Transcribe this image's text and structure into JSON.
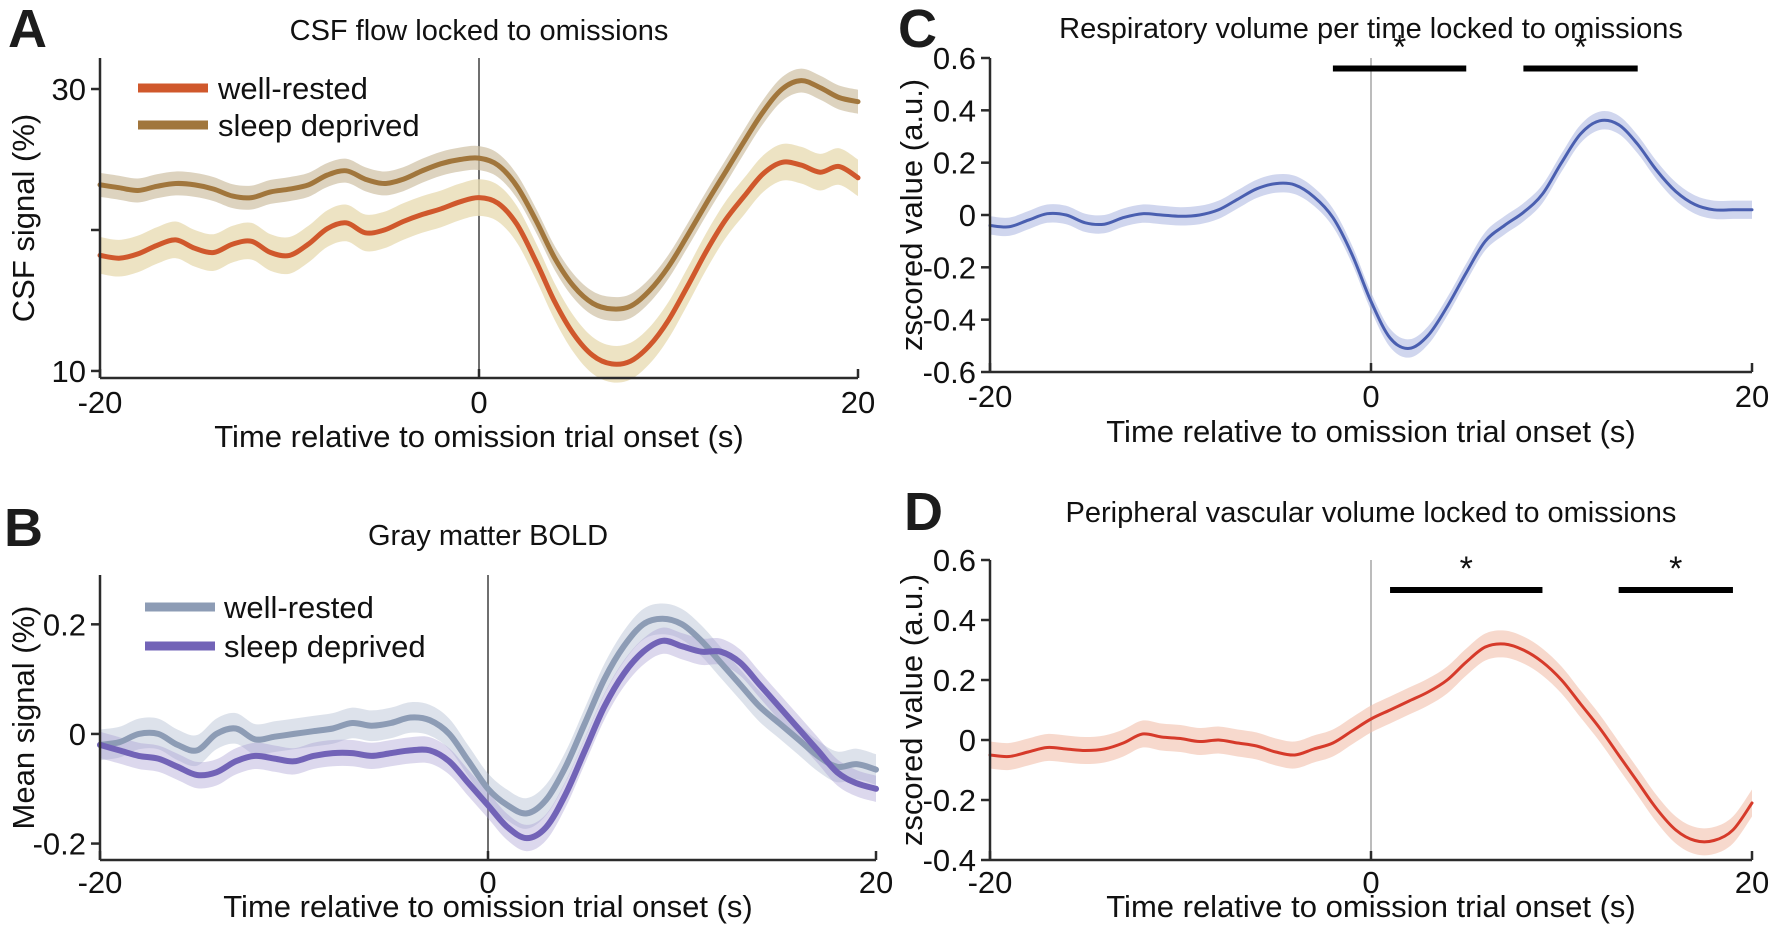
{
  "figure": {
    "background": "#ffffff",
    "text_color": "#111111",
    "axis_color": "#2b2b2b",
    "sig_bar_color": "#000000"
  },
  "chart_data": [
    {
      "panel_label": "A",
      "type": "line",
      "title": "CSF flow locked to omissions",
      "xlabel": "Time relative to omission trial onset (s)",
      "ylabel": "CSF signal (%)",
      "xlim": [
        -20,
        20
      ],
      "ylim": [
        9.5,
        32.2
      ],
      "xticks": [
        {
          "v": -20,
          "label": "-20"
        },
        {
          "v": 0,
          "label": "0"
        },
        {
          "v": 20,
          "label": "20"
        }
      ],
      "yticks": [
        {
          "v": 10,
          "label": "10"
        },
        {
          "v": 20,
          "label": ""
        },
        {
          "v": 30,
          "label": "30"
        }
      ],
      "zero_line": {
        "show": true,
        "color": "#6f6f6f",
        "width": 2
      },
      "x": [
        -20,
        -19,
        -18,
        -17,
        -16,
        -15,
        -14,
        -13,
        -12,
        -11,
        -10,
        -9,
        -8,
        -7,
        -6,
        -5,
        -4,
        -3,
        -2,
        -1,
        0,
        1,
        2,
        3,
        4,
        5,
        6,
        7,
        8,
        9,
        10,
        11,
        12,
        13,
        14,
        15,
        16,
        17,
        18,
        19,
        20
      ],
      "series": [
        {
          "name": "well-rested",
          "color": "#d0582c",
          "line_width": 5,
          "band_half_width": 1.3,
          "band_color": "#e9dcb4",
          "band_opacity": 0.8,
          "values": [
            18.2,
            18.0,
            18.3,
            18.9,
            19.3,
            18.7,
            18.4,
            19.0,
            19.2,
            18.4,
            18.2,
            19.0,
            20.1,
            20.5,
            19.8,
            20.0,
            20.6,
            21.1,
            21.5,
            22.0,
            22.3,
            21.9,
            20.4,
            17.8,
            14.9,
            12.6,
            11.1,
            10.5,
            10.7,
            11.8,
            13.6,
            16.0,
            18.5,
            20.7,
            22.4,
            24.0,
            24.8,
            24.6,
            24.1,
            24.5,
            23.7
          ]
        },
        {
          "name": "sleep deprived",
          "color": "#a1763c",
          "line_width": 5,
          "band_half_width": 0.85,
          "band_color": "#cfc0a4",
          "band_opacity": 0.7,
          "values": [
            23.2,
            23.0,
            22.8,
            23.1,
            23.3,
            23.2,
            22.9,
            22.4,
            22.3,
            22.7,
            22.9,
            23.2,
            23.9,
            24.2,
            23.6,
            23.3,
            23.6,
            24.2,
            24.7,
            25.0,
            25.1,
            24.6,
            23.1,
            20.7,
            18.0,
            16.0,
            14.8,
            14.4,
            14.6,
            15.7,
            17.4,
            19.6,
            21.9,
            24.1,
            26.3,
            28.4,
            30.0,
            30.6,
            30.1,
            29.4,
            29.1
          ]
        }
      ],
      "legend": {
        "entries": [
          "well-rested",
          "sleep deprived"
        ]
      },
      "sig_bars": []
    },
    {
      "panel_label": "B",
      "type": "line",
      "title": "Gray matter BOLD",
      "xlabel": "Time relative to omission trial onset (s)",
      "ylabel": "Mean signal (%)",
      "xlim": [
        -20,
        20
      ],
      "ylim": [
        -0.23,
        0.29
      ],
      "xticks": [
        {
          "v": -20,
          "label": "-20"
        },
        {
          "v": 0,
          "label": "0"
        },
        {
          "v": 20,
          "label": "20"
        }
      ],
      "yticks": [
        {
          "v": -0.2,
          "label": "-0.2"
        },
        {
          "v": 0,
          "label": "0"
        },
        {
          "v": 0.2,
          "label": "0.2"
        }
      ],
      "zero_line": {
        "show": true,
        "color": "#6f6f6f",
        "width": 2
      },
      "x": [
        -20,
        -19,
        -18,
        -17,
        -16,
        -15,
        -14,
        -13,
        -12,
        -11,
        -10,
        -9,
        -8,
        -7,
        -6,
        -5,
        -4,
        -3,
        -2,
        -1,
        0,
        1,
        2,
        3,
        4,
        5,
        6,
        7,
        8,
        9,
        10,
        11,
        12,
        13,
        14,
        15,
        16,
        17,
        18,
        19,
        20
      ],
      "series": [
        {
          "name": "well-rested",
          "color": "#8d9cb5",
          "line_width": 6,
          "band_half_width": 0.028,
          "band_color": "#aab6cc",
          "band_opacity": 0.4,
          "values": [
            -0.02,
            -0.015,
            0.0,
            0.0,
            -0.02,
            -0.03,
            0.0,
            0.01,
            -0.01,
            -0.005,
            0.0,
            0.005,
            0.01,
            0.02,
            0.015,
            0.02,
            0.03,
            0.025,
            0.0,
            -0.05,
            -0.1,
            -0.13,
            -0.145,
            -0.12,
            -0.06,
            0.02,
            0.1,
            0.16,
            0.2,
            0.21,
            0.2,
            0.17,
            0.13,
            0.09,
            0.05,
            0.02,
            -0.01,
            -0.04,
            -0.06,
            -0.055,
            -0.065
          ]
        },
        {
          "name": "sleep deprived",
          "color": "#7263b7",
          "line_width": 6,
          "band_half_width": 0.024,
          "band_color": "#a79ed3",
          "band_opacity": 0.4,
          "values": [
            -0.02,
            -0.03,
            -0.04,
            -0.045,
            -0.06,
            -0.075,
            -0.07,
            -0.05,
            -0.04,
            -0.045,
            -0.05,
            -0.04,
            -0.035,
            -0.035,
            -0.04,
            -0.035,
            -0.03,
            -0.03,
            -0.05,
            -0.09,
            -0.13,
            -0.17,
            -0.19,
            -0.17,
            -0.11,
            -0.03,
            0.05,
            0.11,
            0.15,
            0.17,
            0.16,
            0.15,
            0.15,
            0.13,
            0.09,
            0.05,
            0.01,
            -0.03,
            -0.07,
            -0.09,
            -0.1
          ]
        }
      ],
      "legend": {
        "entries": [
          "well-rested",
          "sleep deprived"
        ]
      },
      "sig_bars": []
    },
    {
      "panel_label": "C",
      "type": "line",
      "title": "Respiratory volume per time locked to omissions",
      "xlabel": "Time relative to omission trial onset (s)",
      "ylabel": "zscored value  (a.u.)",
      "xlim": [
        -20,
        20
      ],
      "ylim": [
        -0.6,
        0.6
      ],
      "xticks": [
        {
          "v": -20,
          "label": "-20"
        },
        {
          "v": 0,
          "label": "0"
        },
        {
          "v": 20,
          "label": "20"
        }
      ],
      "yticks": [
        {
          "v": -0.6,
          "label": "-0.6"
        },
        {
          "v": -0.4,
          "label": "-0.4"
        },
        {
          "v": -0.2,
          "label": "-0.2"
        },
        {
          "v": 0,
          "label": "0"
        },
        {
          "v": 0.2,
          "label": "0.2"
        },
        {
          "v": 0.4,
          "label": "0.4"
        },
        {
          "v": 0.6,
          "label": "0.6"
        }
      ],
      "zero_line": {
        "show": true,
        "color": "#bcbcbc",
        "width": 2
      },
      "x": [
        -20,
        -19,
        -18,
        -17,
        -16,
        -15,
        -14,
        -13,
        -12,
        -11,
        -10,
        -9,
        -8,
        -7,
        -6,
        -5,
        -4,
        -3,
        -2,
        -1,
        0,
        1,
        2,
        3,
        4,
        5,
        6,
        7,
        8,
        9,
        10,
        11,
        12,
        13,
        14,
        15,
        16,
        17,
        18,
        19,
        20
      ],
      "series": [
        {
          "name": "respiratory volume per time",
          "color": "#4a5fb0",
          "line_width": 3,
          "band_half_width": 0.035,
          "band_color": "#aab4e0",
          "band_opacity": 0.55,
          "values": [
            -0.04,
            -0.045,
            -0.02,
            0.005,
            0.0,
            -0.03,
            -0.035,
            -0.01,
            0.005,
            0.0,
            -0.005,
            0.0,
            0.02,
            0.06,
            0.1,
            0.12,
            0.115,
            0.07,
            -0.01,
            -0.15,
            -0.33,
            -0.47,
            -0.51,
            -0.46,
            -0.35,
            -0.22,
            -0.1,
            -0.04,
            0.01,
            0.08,
            0.2,
            0.31,
            0.36,
            0.345,
            0.27,
            0.17,
            0.09,
            0.04,
            0.02,
            0.02,
            0.02
          ]
        }
      ],
      "legend": null,
      "sig_bars": [
        {
          "x1": -2,
          "x2": 5,
          "y": 0.56,
          "label": "*"
        },
        {
          "x1": 8,
          "x2": 14,
          "y": 0.56,
          "label": "*"
        }
      ]
    },
    {
      "panel_label": "D",
      "type": "line",
      "title": "Peripheral vascular volume locked to omissions",
      "xlabel": "Time relative to omission trial onset (s)",
      "ylabel": "zscored value  (a.u.)",
      "xlim": [
        -20,
        20
      ],
      "ylim": [
        -0.4,
        0.6
      ],
      "xticks": [
        {
          "v": -20,
          "label": "-20"
        },
        {
          "v": 0,
          "label": "0"
        },
        {
          "v": 20,
          "label": "20"
        }
      ],
      "yticks": [
        {
          "v": -0.4,
          "label": "-0.4"
        },
        {
          "v": -0.2,
          "label": "-0.2"
        },
        {
          "v": 0,
          "label": "0"
        },
        {
          "v": 0.2,
          "label": "0.2"
        },
        {
          "v": 0.4,
          "label": "0.4"
        },
        {
          "v": 0.6,
          "label": "0.6"
        }
      ],
      "zero_line": {
        "show": true,
        "color": "#bcbcbc",
        "width": 2
      },
      "x": [
        -20,
        -19,
        -18,
        -17,
        -16,
        -15,
        -14,
        -13,
        -12,
        -11,
        -10,
        -9,
        -8,
        -7,
        -6,
        -5,
        -4,
        -3,
        -2,
        -1,
        0,
        1,
        2,
        3,
        4,
        5,
        6,
        7,
        8,
        9,
        10,
        11,
        12,
        13,
        14,
        15,
        16,
        17,
        18,
        19,
        20
      ],
      "series": [
        {
          "name": "peripheral vascular volume",
          "color": "#d63a2a",
          "line_width": 3,
          "band_half_width": 0.045,
          "band_color": "#f0b9a4",
          "band_opacity": 0.55,
          "values": [
            -0.05,
            -0.055,
            -0.04,
            -0.025,
            -0.03,
            -0.035,
            -0.03,
            -0.01,
            0.02,
            0.01,
            0.005,
            -0.005,
            0.0,
            -0.01,
            -0.02,
            -0.04,
            -0.05,
            -0.03,
            -0.01,
            0.03,
            0.07,
            0.1,
            0.13,
            0.16,
            0.2,
            0.26,
            0.31,
            0.32,
            0.3,
            0.26,
            0.2,
            0.12,
            0.04,
            -0.05,
            -0.14,
            -0.23,
            -0.3,
            -0.335,
            -0.335,
            -0.3,
            -0.21
          ]
        }
      ],
      "legend": null,
      "sig_bars": [
        {
          "x1": 1,
          "x2": 9,
          "y": 0.5,
          "label": "*"
        },
        {
          "x1": 13,
          "x2": 19,
          "y": 0.5,
          "label": "*"
        }
      ]
    }
  ]
}
